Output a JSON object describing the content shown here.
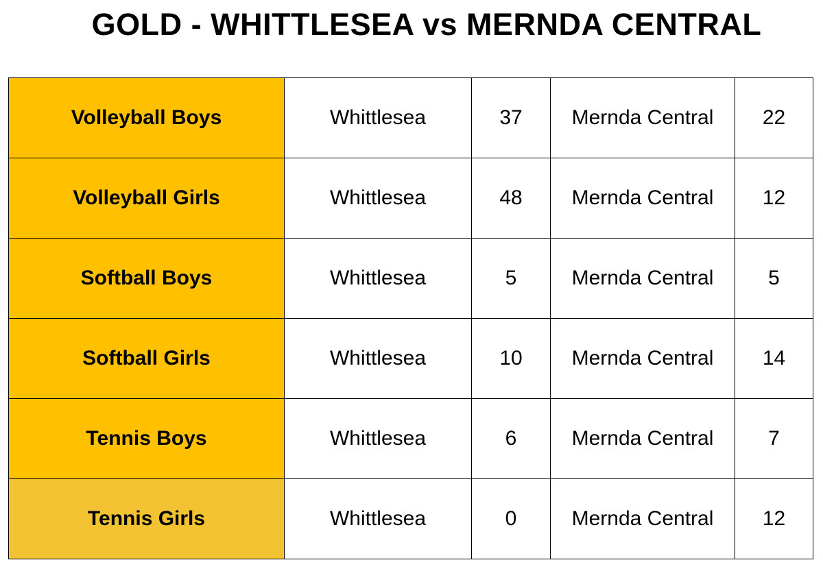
{
  "title": "GOLD - WHITTLESEA vs MERNDA CENTRAL",
  "table": {
    "rows": [
      [
        "Volleyball Boys",
        "Whittlesea",
        37,
        "Mernda Central",
        22
      ],
      [
        "Volleyball Girls",
        "Whittlesea",
        48,
        "Mernda Central",
        12
      ],
      [
        "Softball Boys",
        "Whittlesea",
        5,
        "Mernda Central",
        5
      ],
      [
        "Softball Girls",
        "Whittlesea",
        10,
        "Mernda Central",
        14
      ],
      [
        "Tennis Boys",
        "Whittlesea",
        6,
        "Mernda Central",
        7
      ],
      [
        "Tennis Girls",
        "Whittlesea",
        0,
        "Mernda Central",
        12
      ]
    ]
  }
}
